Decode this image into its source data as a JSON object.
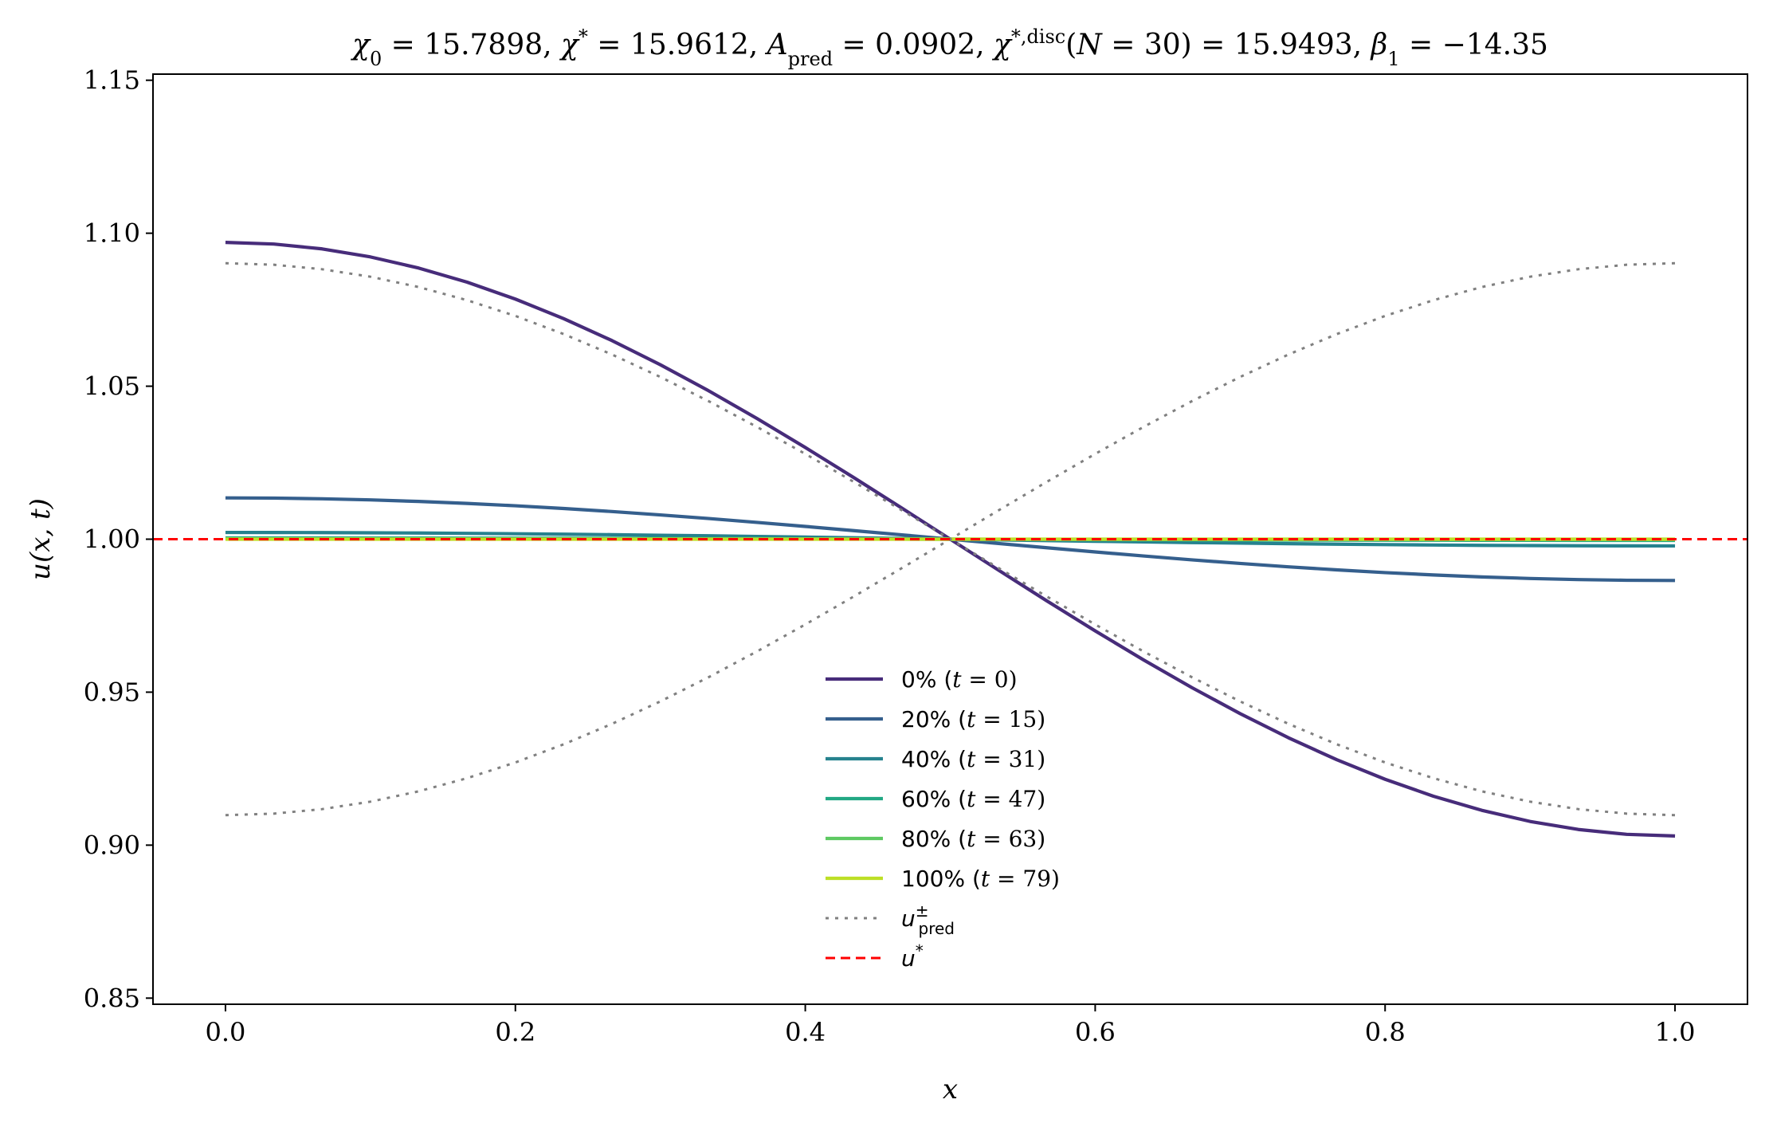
{
  "chart_data": {
    "type": "line",
    "title": "χ₀ = 15.7898,  χ* = 15.9612,  A_pred = 0.0902,  χ*,disc(N = 30) = 15.9493,  β₁ = −14.35",
    "title_parts": {
      "chi0": "15.7898",
      "chi_star": "15.9612",
      "A_pred": "0.0902",
      "chi_disc_N": "30",
      "chi_disc": "15.9493",
      "beta1": "−14.35"
    },
    "xlabel": "x",
    "ylabel": "u(x, t)",
    "xlim": [
      -0.05,
      1.05
    ],
    "ylim": [
      0.848,
      1.152
    ],
    "xticks": [
      0.0,
      0.2,
      0.4,
      0.6,
      0.8,
      1.0
    ],
    "xtick_labels": [
      "0.0",
      "0.2",
      "0.4",
      "0.6",
      "0.8",
      "1.0"
    ],
    "yticks": [
      0.85,
      0.9,
      0.95,
      1.0,
      1.05,
      1.1,
      1.15
    ],
    "ytick_labels": [
      "0.85",
      "0.90",
      "0.95",
      "1.00",
      "1.05",
      "1.10",
      "1.15"
    ],
    "grid": false,
    "legend_position": "lower-center",
    "series": [
      {
        "name": "0% (t = 0)",
        "pct": "0%",
        "t": "0",
        "amplitude": 0.097,
        "color": "#472c7a",
        "style": "solid"
      },
      {
        "name": "20% (t = 15)",
        "pct": "20%",
        "t": "15",
        "amplitude": 0.0135,
        "color": "#355f8d",
        "style": "solid"
      },
      {
        "name": "40% (t = 31)",
        "pct": "40%",
        "t": "31",
        "amplitude": 0.0022,
        "color": "#26828e",
        "style": "solid"
      },
      {
        "name": "60% (t = 47)",
        "pct": "60%",
        "t": "47",
        "amplitude": 0.0004,
        "color": "#22a884",
        "style": "solid"
      },
      {
        "name": "80% (t = 63)",
        "pct": "80%",
        "t": "63",
        "amplitude": 0.0001,
        "color": "#5ec962",
        "style": "solid"
      },
      {
        "name": "100% (t = 79)",
        "pct": "100%",
        "t": "79",
        "amplitude": 0.0,
        "color": "#bddf26",
        "style": "solid"
      },
      {
        "name": "u±pred (+)",
        "amplitude": 0.0902,
        "color": "#808080",
        "style": "dotted"
      },
      {
        "name": "u±pred (−)",
        "amplitude": -0.0902,
        "color": "#808080",
        "style": "dotted"
      },
      {
        "name": "u*",
        "constant": 1.0,
        "color": "#ff0000",
        "style": "dashed"
      }
    ],
    "legend": [
      {
        "label": "0% (t = 0)",
        "color": "#472c7a",
        "style": "solid"
      },
      {
        "label": "20% (t = 15)",
        "color": "#355f8d",
        "style": "solid"
      },
      {
        "label": "40% (t = 31)",
        "color": "#26828e",
        "style": "solid"
      },
      {
        "label": "60% (t = 47)",
        "color": "#22a884",
        "style": "solid"
      },
      {
        "label": "80% (t = 63)",
        "color": "#5ec962",
        "style": "solid"
      },
      {
        "label": "100% (t = 79)",
        "color": "#bddf26",
        "style": "solid"
      },
      {
        "label": "u±pred",
        "color": "#808080",
        "style": "dotted"
      },
      {
        "label": "u*",
        "color": "#ff0000",
        "style": "dashed"
      }
    ]
  }
}
